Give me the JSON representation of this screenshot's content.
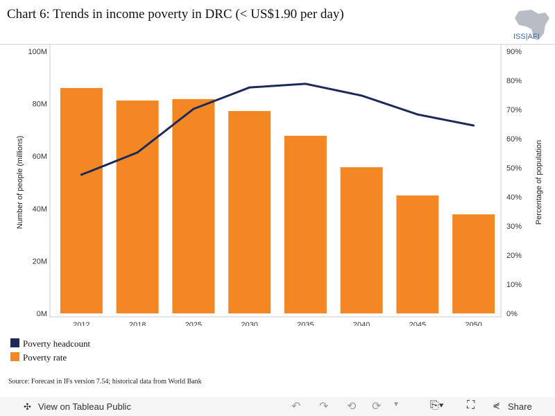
{
  "title": "Chart 6: Trends in income poverty in DRC (< US$1.90 per day)",
  "logo_text": "ISS|AFI",
  "chart_data": {
    "type": "bar+line",
    "categories": [
      "2012",
      "2018",
      "2025",
      "2030",
      "2035",
      "2040",
      "2045",
      "2050"
    ],
    "series": [
      {
        "name": "Poverty rate",
        "type": "bar",
        "axis": "right",
        "color": "#f28724",
        "values": [
          77.4,
          73.1,
          73.6,
          69.5,
          61.0,
          50.2,
          40.5,
          34.0
        ]
      },
      {
        "name": "Poverty headcount",
        "type": "line",
        "axis": "left",
        "color": "#1c2a5a",
        "values": [
          52.9,
          61.4,
          78.0,
          86.2,
          87.6,
          83.1,
          75.9,
          71.7
        ]
      }
    ],
    "ylabel_left": "Number of people (millions)",
    "ylabel_right": "Percentage of population",
    "ylim_left": [
      0,
      100
    ],
    "yticks_left": [
      "0M",
      "20M",
      "40M",
      "60M",
      "80M",
      "100M"
    ],
    "ylim_right": [
      0,
      90
    ],
    "yticks_right": [
      "0%",
      "10%",
      "20%",
      "30%",
      "40%",
      "50%",
      "60%",
      "70%",
      "80%",
      "90%"
    ],
    "legend_position": "bottom-left"
  },
  "legend": [
    "Poverty headcount",
    "Poverty rate"
  ],
  "source": "Source: Forecast in IFs version 7.54; historical data from World Bank",
  "toolbar": {
    "view": "View on Tableau Public",
    "share": "Share"
  }
}
